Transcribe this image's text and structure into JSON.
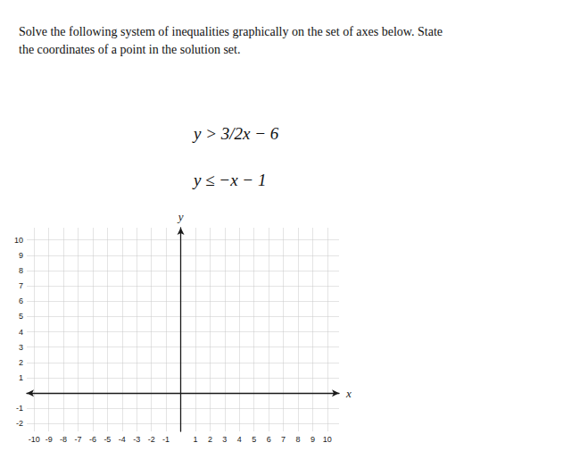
{
  "chart_data": {
    "type": "scatter",
    "title": "Solve the following system of inequalities graphically on the set of axes below. State\nthe coordinates of a point in the solution set.",
    "annotations": [
      "y > 3/2x − 6",
      "y ≤ −x − 1"
    ],
    "x_label": "x",
    "y_label": "y",
    "xlim": [
      -10.5,
      10.8
    ],
    "ylim": [
      -2.5,
      10.8
    ],
    "xticks": [
      -10,
      -9,
      -8,
      -7,
      -6,
      -5,
      -4,
      -3,
      -2,
      -1,
      1,
      2,
      3,
      4,
      5,
      6,
      7,
      8,
      9,
      10
    ],
    "yticks": [
      -2,
      -1,
      1,
      2,
      3,
      4,
      5,
      6,
      7,
      8,
      9,
      10
    ],
    "grid": true
  }
}
